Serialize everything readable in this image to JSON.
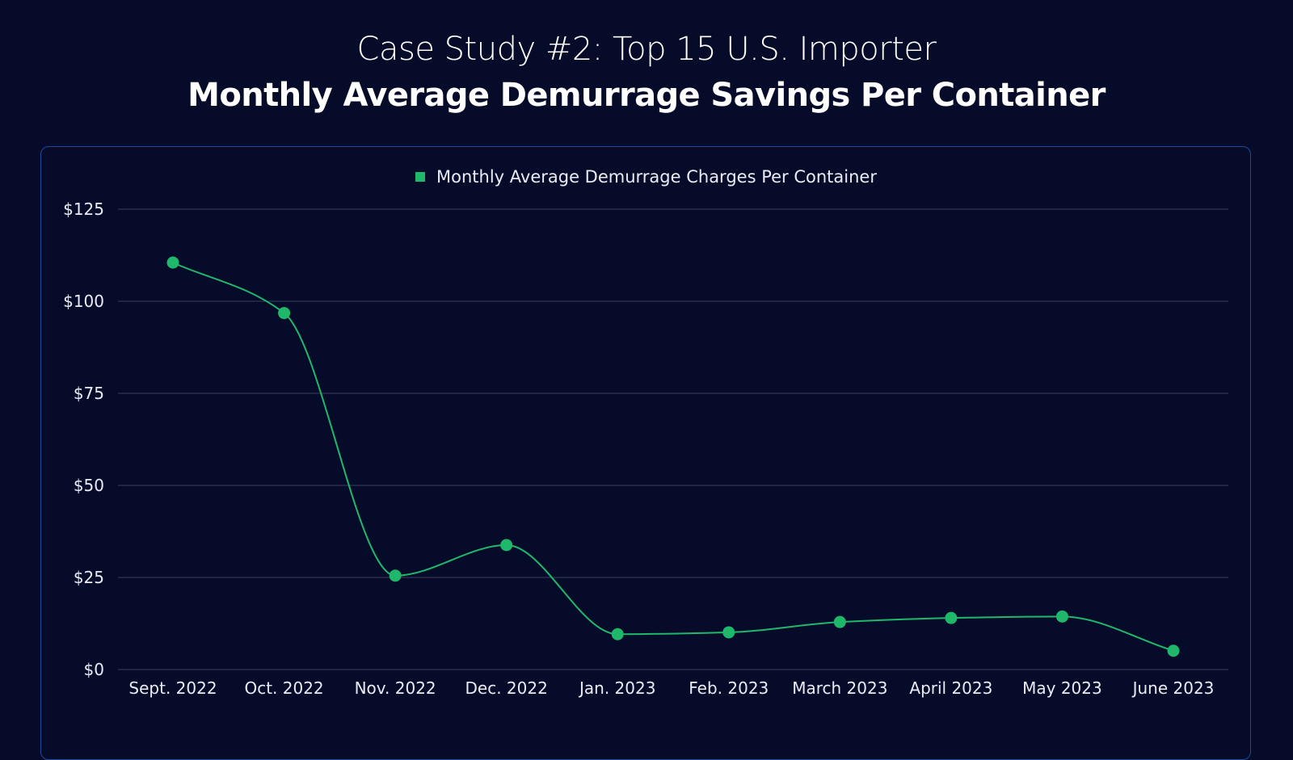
{
  "header": {
    "subtitle": "Case Study #2: Top 15 U.S. Importer",
    "title": "Monthly Average Demurrage Savings Per Container"
  },
  "colors": {
    "background": "#070b2a",
    "series": "#1fb86a",
    "grid": "#3a3f5c",
    "panel_border": "#1a4a9a"
  },
  "chart_data": {
    "type": "line",
    "title": "",
    "xlabel": "",
    "ylabel": "",
    "categories": [
      "Sept. 2022",
      "Oct. 2022",
      "Nov. 2022",
      "Dec. 2022",
      "Jan. 2023",
      "Feb. 2023",
      "March 2023",
      "April 2023",
      "May 2023",
      "June 2023"
    ],
    "series": [
      {
        "name": "Monthly Average Demurrage Charges Per Container",
        "values": [
          110.5,
          96.8,
          25.5,
          33.8,
          9.6,
          10.1,
          12.9,
          14.0,
          14.4,
          5.1
        ]
      }
    ],
    "ylim": [
      0,
      125
    ],
    "yticks": [
      0,
      25,
      50,
      75,
      100,
      125
    ],
    "ytick_labels": [
      "$0",
      "$25",
      "$50",
      "$75",
      "$100",
      "$125"
    ],
    "grid": true,
    "smooth": true,
    "legend_position": "top-center"
  }
}
